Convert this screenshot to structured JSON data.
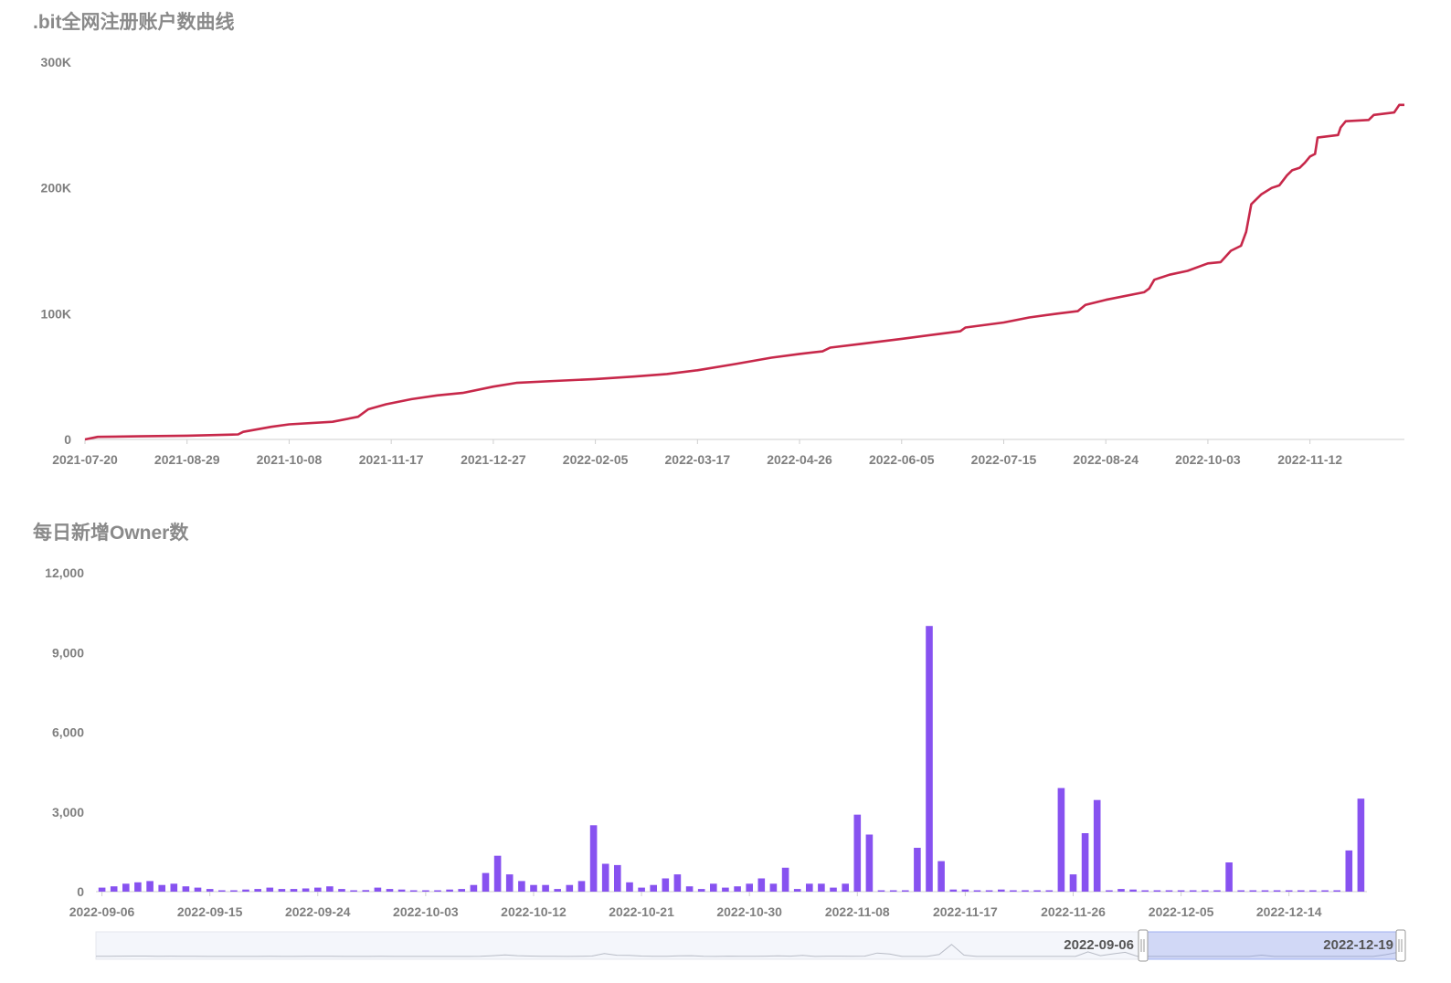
{
  "chart_data": [
    {
      "type": "line",
      "title": ".bit全网注册账户数曲线",
      "color": "#c7284a",
      "ylim": [
        0,
        300000
      ],
      "y_ticks": [
        "0",
        "100K",
        "200K",
        "300K"
      ],
      "x_ticks": [
        "2021-07-20",
        "2021-08-29",
        "2021-10-08",
        "2021-11-17",
        "2021-12-27",
        "2022-02-05",
        "2022-03-17",
        "2022-04-26",
        "2022-06-05",
        "2022-07-15",
        "2022-08-24",
        "2022-10-03",
        "2022-11-12"
      ],
      "x_range": [
        "2021-07-20",
        "2022-12-19"
      ],
      "grid": false,
      "points": [
        [
          "2021-07-20",
          0
        ],
        [
          "2021-07-25",
          2000
        ],
        [
          "2021-08-10",
          2500
        ],
        [
          "2021-08-29",
          3000
        ],
        [
          "2021-09-18",
          4000
        ],
        [
          "2021-09-20",
          6000
        ],
        [
          "2021-10-01",
          10000
        ],
        [
          "2021-10-08",
          12000
        ],
        [
          "2021-10-25",
          14000
        ],
        [
          "2021-11-04",
          18000
        ],
        [
          "2021-11-08",
          24000
        ],
        [
          "2021-11-15",
          28000
        ],
        [
          "2021-11-25",
          32000
        ],
        [
          "2021-12-05",
          35000
        ],
        [
          "2021-12-15",
          37000
        ],
        [
          "2021-12-27",
          42000
        ],
        [
          "2022-01-05",
          45000
        ],
        [
          "2022-01-20",
          46500
        ],
        [
          "2022-02-05",
          48000
        ],
        [
          "2022-02-20",
          50000
        ],
        [
          "2022-03-05",
          52000
        ],
        [
          "2022-03-17",
          55000
        ],
        [
          "2022-04-01",
          60000
        ],
        [
          "2022-04-15",
          65000
        ],
        [
          "2022-04-26",
          68000
        ],
        [
          "2022-05-05",
          70000
        ],
        [
          "2022-05-08",
          73000
        ],
        [
          "2022-05-20",
          76000
        ],
        [
          "2022-06-05",
          80000
        ],
        [
          "2022-06-20",
          84000
        ],
        [
          "2022-06-28",
          86000
        ],
        [
          "2022-06-30",
          89000
        ],
        [
          "2022-07-15",
          93000
        ],
        [
          "2022-07-25",
          97000
        ],
        [
          "2022-08-05",
          100000
        ],
        [
          "2022-08-13",
          102000
        ],
        [
          "2022-08-16",
          107000
        ],
        [
          "2022-08-24",
          111000
        ],
        [
          "2022-09-08",
          117000
        ],
        [
          "2022-09-10",
          120000
        ],
        [
          "2022-09-12",
          127000
        ],
        [
          "2022-09-18",
          131000
        ],
        [
          "2022-09-25",
          134000
        ],
        [
          "2022-10-03",
          140000
        ],
        [
          "2022-10-08",
          141000
        ],
        [
          "2022-10-12",
          150000
        ],
        [
          "2022-10-16",
          154000
        ],
        [
          "2022-10-18",
          165000
        ],
        [
          "2022-10-20",
          187000
        ],
        [
          "2022-10-24",
          195000
        ],
        [
          "2022-10-28",
          200000
        ],
        [
          "2022-10-31",
          202000
        ],
        [
          "2022-11-03",
          210000
        ],
        [
          "2022-11-05",
          214000
        ],
        [
          "2022-11-08",
          216000
        ],
        [
          "2022-11-10",
          220000
        ],
        [
          "2022-11-12",
          225000
        ],
        [
          "2022-11-14",
          227000
        ],
        [
          "2022-11-15",
          240000
        ],
        [
          "2022-11-23",
          242000
        ],
        [
          "2022-11-24",
          248000
        ],
        [
          "2022-11-26",
          253000
        ],
        [
          "2022-12-05",
          254000
        ],
        [
          "2022-12-07",
          258000
        ],
        [
          "2022-12-15",
          260000
        ],
        [
          "2022-12-17",
          266000
        ],
        [
          "2022-12-19",
          266000
        ]
      ]
    },
    {
      "type": "bar",
      "title": "每日新增Owner数",
      "color": "#8752f0",
      "ylim": [
        0,
        12000
      ],
      "y_ticks": [
        "0",
        "3,000",
        "6,000",
        "9,000",
        "12,000"
      ],
      "x_ticks": [
        "2022-09-06",
        "2022-09-15",
        "2022-09-24",
        "2022-10-03",
        "2022-10-12",
        "2022-10-21",
        "2022-10-30",
        "2022-11-08",
        "2022-11-17",
        "2022-11-26",
        "2022-12-05",
        "2022-12-14"
      ],
      "grid": false,
      "start_date": "2022-09-06",
      "values": [
        150,
        200,
        300,
        350,
        400,
        250,
        300,
        200,
        150,
        100,
        50,
        50,
        80,
        100,
        150,
        100,
        100,
        120,
        150,
        200,
        100,
        50,
        60,
        150,
        100,
        80,
        50,
        50,
        50,
        80,
        100,
        250,
        700,
        1350,
        650,
        400,
        250,
        250,
        100,
        250,
        400,
        2500,
        1050,
        1000,
        350,
        150,
        250,
        500,
        650,
        200,
        100,
        300,
        150,
        200,
        300,
        500,
        300,
        900,
        100,
        300,
        300,
        150,
        300,
        2900,
        2150,
        50,
        50,
        50,
        1650,
        10000,
        1150,
        80,
        80,
        50,
        50,
        80,
        50,
        50,
        50,
        50,
        3900,
        650,
        2200,
        3450,
        50,
        100,
        80,
        50,
        50,
        50,
        50,
        50,
        50,
        50,
        1100,
        50,
        50,
        50,
        50,
        50,
        50,
        50,
        50,
        50,
        1550,
        3500
      ],
      "zoom": {
        "start_label": "2022-09-06",
        "end_label": "2022-12-19"
      }
    }
  ]
}
